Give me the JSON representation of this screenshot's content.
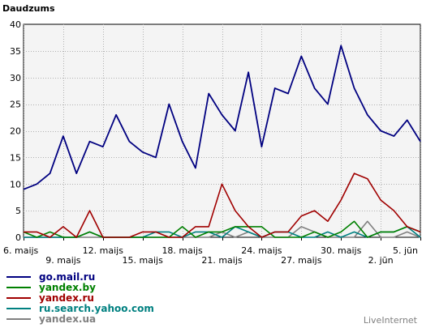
{
  "chart_data": {
    "type": "line",
    "ylabel": "Daudzums",
    "ylim": [
      0,
      40
    ],
    "yticks": [
      0,
      5,
      10,
      15,
      20,
      25,
      30,
      35,
      40
    ],
    "grid": true,
    "x": [
      "6. maijs",
      "7. maijs",
      "8. maijs",
      "9. maijs",
      "10. maijs",
      "11. maijs",
      "12. maijs",
      "13. maijs",
      "14. maijs",
      "15. maijs",
      "16. maijs",
      "17. maijs",
      "18. maijs",
      "19. maijs",
      "20. maijs",
      "21. maijs",
      "22. maijs",
      "23. maijs",
      "24. maijs",
      "25. maijs",
      "26. maijs",
      "27. maijs",
      "28. maijs",
      "29. maijs",
      "30. maijs",
      "31. maijs",
      "1. jūn",
      "2. jūn",
      "3. jūn",
      "4. jūn",
      "5. jūn"
    ],
    "tick_labels": [
      {
        "index": 0,
        "label": "6. maijs",
        "row": 0
      },
      {
        "index": 3,
        "label": "9. maijs",
        "row": 1
      },
      {
        "index": 6,
        "label": "12. maijs",
        "row": 0
      },
      {
        "index": 9,
        "label": "15. maijs",
        "row": 1
      },
      {
        "index": 12,
        "label": "18. maijs",
        "row": 0
      },
      {
        "index": 15,
        "label": "21. maijs",
        "row": 1
      },
      {
        "index": 18,
        "label": "24. maijs",
        "row": 0
      },
      {
        "index": 21,
        "label": "27. maijs",
        "row": 1
      },
      {
        "index": 24,
        "label": "30. maijs",
        "row": 0
      },
      {
        "index": 27,
        "label": "2. jūn",
        "row": 1
      },
      {
        "index": 30,
        "label": "5. jūn",
        "row": 0
      }
    ],
    "series": [
      {
        "name": "go.mail.ru",
        "color": "#000080",
        "values": [
          9,
          10,
          12,
          19,
          12,
          18,
          17,
          23,
          18,
          16,
          15,
          25,
          18,
          13,
          27,
          23,
          20,
          31,
          17,
          28,
          27,
          34,
          28,
          25,
          36,
          28,
          23,
          20,
          19,
          22,
          18
        ]
      },
      {
        "name": "yandex.by",
        "color": "#008000",
        "values": [
          1,
          0,
          1,
          0,
          0,
          1,
          0,
          0,
          0,
          0,
          0,
          0,
          2,
          0,
          1,
          1,
          2,
          2,
          2,
          0,
          0,
          0,
          1,
          0,
          1,
          3,
          0,
          1,
          1,
          2,
          1
        ]
      },
      {
        "name": "yandex.ru",
        "color": "#a00000",
        "values": [
          1,
          1,
          0,
          2,
          0,
          5,
          0,
          0,
          0,
          1,
          1,
          0,
          0,
          2,
          2,
          10,
          5,
          2,
          0,
          1,
          1,
          4,
          5,
          3,
          7,
          12,
          11,
          7,
          5,
          2,
          1
        ]
      },
      {
        "name": "ru.search.yahoo.com",
        "color": "#008080",
        "values": [
          0,
          0,
          0,
          0,
          0,
          1,
          0,
          0,
          0,
          0,
          1,
          1,
          0,
          1,
          1,
          0,
          2,
          1,
          0,
          1,
          1,
          0,
          0,
          1,
          0,
          1,
          0,
          1,
          1,
          2,
          0
        ]
      },
      {
        "name": "yandex.ua",
        "color": "#808080",
        "values": [
          0,
          0,
          0,
          0,
          0,
          0,
          0,
          0,
          0,
          0,
          0,
          0,
          0,
          0,
          0,
          1,
          0,
          1,
          0,
          0,
          0,
          2,
          1,
          0,
          0,
          0,
          3,
          0,
          0,
          1,
          0
        ]
      }
    ]
  },
  "brand": "LiveInternet"
}
